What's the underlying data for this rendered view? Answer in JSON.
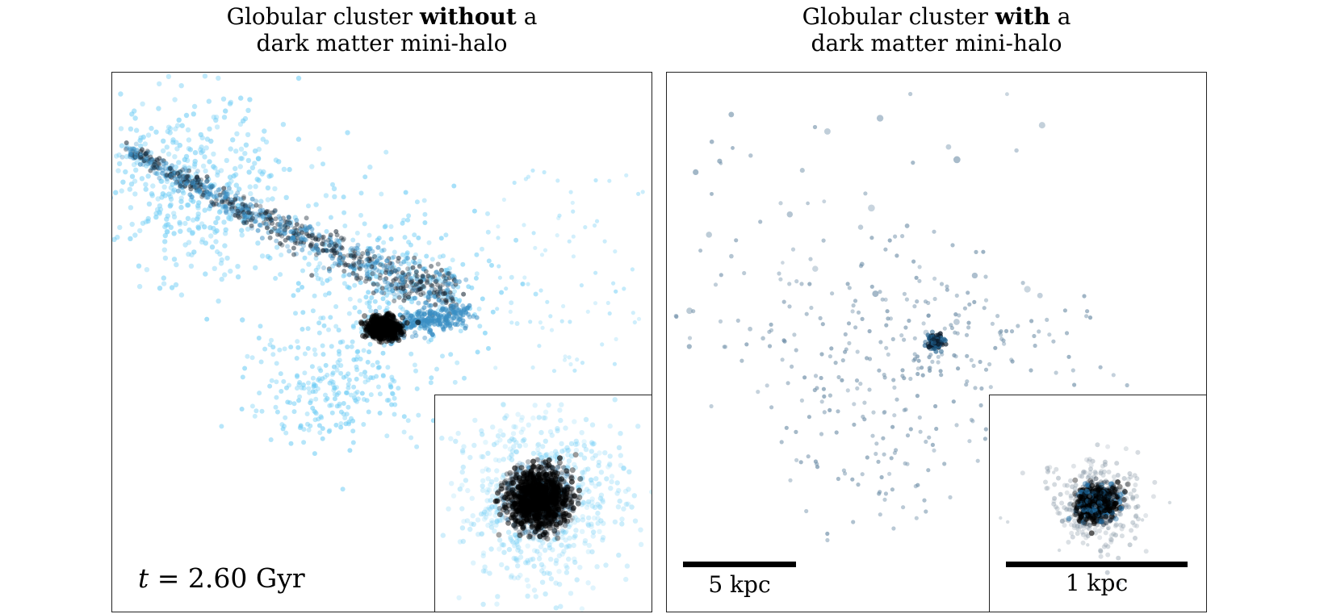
{
  "panels": [
    {
      "title_pre": "Globular cluster ",
      "title_bold": "without",
      "title_post": " a",
      "title_line2": "dark matter mini-halo",
      "time_var": "t",
      "time_text": " = 2.60 Gyr"
    },
    {
      "title_pre": "Globular cluster ",
      "title_bold": "with",
      "title_post": " a",
      "title_line2": "dark matter mini-halo",
      "scale_main_label": "5 kpc",
      "scale_inset_label": "1 kpc"
    }
  ],
  "colors": {
    "stream_light": "#6fcdf5",
    "stream_mid": "#3a8fc4",
    "core": "#000000",
    "halo_points": "#6f8fa8",
    "frame": "#222222"
  }
}
